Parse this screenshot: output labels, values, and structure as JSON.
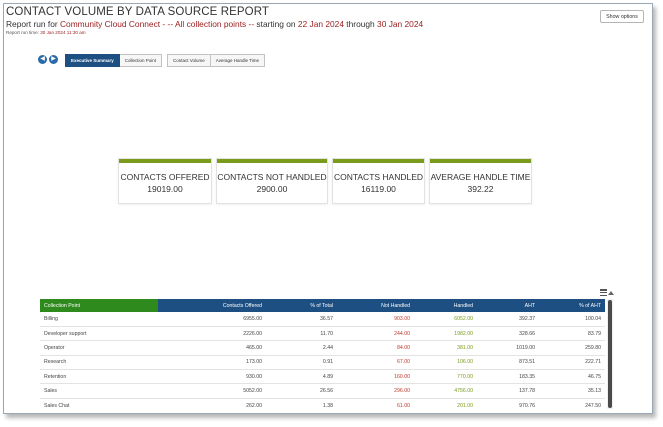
{
  "header": {
    "title": "CONTACT VOLUME BY DATA SOURCE REPORT",
    "subtitle_prefix": "Report run for ",
    "subtitle_source": "Community Cloud Connect",
    "subtitle_sep": "  - -- All collection points --",
    "subtitle_starting": "  starting on ",
    "start_date": "22 Jan 2024",
    "subtitle_through": " through ",
    "end_date": "30 Jan 2024",
    "run_time_label": "Report run time: ",
    "run_time_value": "30 Jan 2024 11:30 am"
  },
  "show_options_label": "Show options",
  "nav": {
    "prev_icon": "arrow-left-icon",
    "next_icon": "arrow-right-icon",
    "prev_glyph": "◀",
    "next_glyph": "▶"
  },
  "tabs_group1": [
    {
      "label": "Executive Summary",
      "active": true
    },
    {
      "label": "Collection Point",
      "active": false
    }
  ],
  "tabs_group2": [
    {
      "label": "Contact Volume",
      "active": false
    },
    {
      "label": "Average Handle Time",
      "active": false
    }
  ],
  "kpis": [
    {
      "label": "CONTACTS OFFERED",
      "value": "19019.00"
    },
    {
      "label": "CONTACTS NOT HANDLED",
      "value": "2900.00"
    },
    {
      "label": "CONTACTS HANDLED",
      "value": "16119.00"
    },
    {
      "label": "AVERAGE HANDLE TIME",
      "value": "392.22"
    }
  ],
  "colors": {
    "kpi_bar": "#7b9b1c",
    "header_blue": "#1d4f82",
    "header_green": "#2f8a1d",
    "not_handled": "#c0392b",
    "handled": "#7a9a1a"
  },
  "table": {
    "columns": [
      "Collection Point",
      "Contacts Offered",
      "% of Total",
      "Not Handled",
      "Handled",
      "AHT",
      "% of AHT"
    ],
    "rows": [
      [
        "Billing",
        "6955.00",
        "36.57",
        "903.00",
        "6052.00",
        "392.37",
        "100.04"
      ],
      [
        "Developer support",
        "2226.00",
        "11.70",
        "244.00",
        "1982.00",
        "328.66",
        "83.79"
      ],
      [
        "Operator",
        "465.00",
        "2.44",
        "84.00",
        "381.00",
        "1019.00",
        "259.80"
      ],
      [
        "Research",
        "173.00",
        "0.91",
        "67.00",
        "106.00",
        "873.51",
        "222.71"
      ],
      [
        "Retention",
        "930.00",
        "4.89",
        "160.00",
        "770.00",
        "183.35",
        "46.75"
      ],
      [
        "Sales",
        "5052.00",
        "26.56",
        "296.00",
        "4756.00",
        "137.78",
        "35.13"
      ],
      [
        "Sales Chat",
        "262.00",
        "1.38",
        "61.00",
        "201.00",
        "970.76",
        "247.50"
      ]
    ]
  }
}
